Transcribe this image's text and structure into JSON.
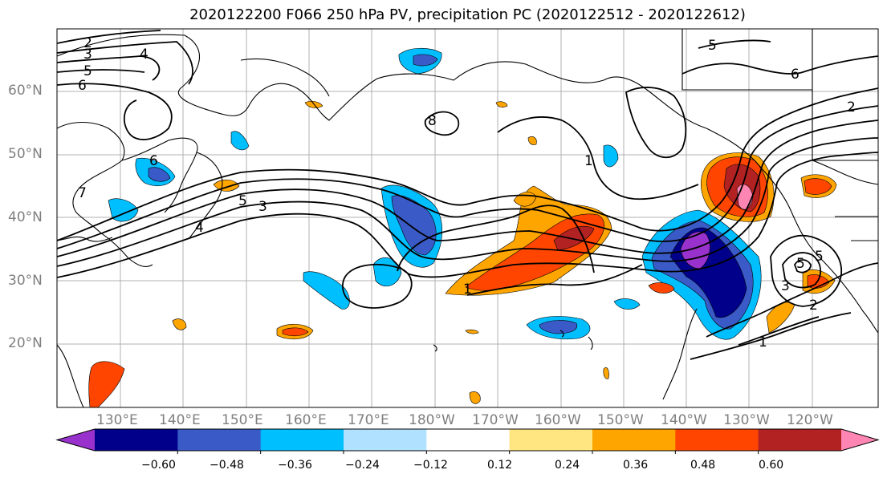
{
  "title": "2020122200 F066 250 hPa PV, precipitation PC (2020122512 - 2020122612)",
  "lat_labels": [
    "60°N",
    "50°N",
    "40°N",
    "30°N",
    "20°N"
  ],
  "lon_labels": [
    "130°E",
    "140°E",
    "150°E",
    "160°E",
    "170°E",
    "180°W",
    "170°W",
    "160°W",
    "150°W",
    "140°W",
    "130°W",
    "120°W"
  ],
  "contour_labels": [
    "2",
    "3",
    "4",
    "5",
    "6",
    "6",
    "7",
    "5",
    "4",
    "3",
    "8",
    "1",
    "5",
    "6",
    "2",
    "1",
    "5",
    "3",
    "2",
    "1",
    "5"
  ],
  "colorbar": {
    "colors": [
      "#9932cc",
      "#00008b",
      "#3a5bc7",
      "#00bfff",
      "#b0e2ff",
      "#ffffff",
      "#ffe680",
      "#ffa500",
      "#ff4500",
      "#b22222",
      "#ff85b3"
    ],
    "ticks": [
      "−0.60",
      "−0.48",
      "−0.36",
      "−0.24",
      "−0.12",
      "0.12",
      "0.24",
      "0.36",
      "0.48",
      "0.60"
    ]
  },
  "colors": {
    "grid": "#b0b0b0",
    "contour": "#000000",
    "coast": "#000000",
    "axis_label": "#7f7f7f"
  }
}
